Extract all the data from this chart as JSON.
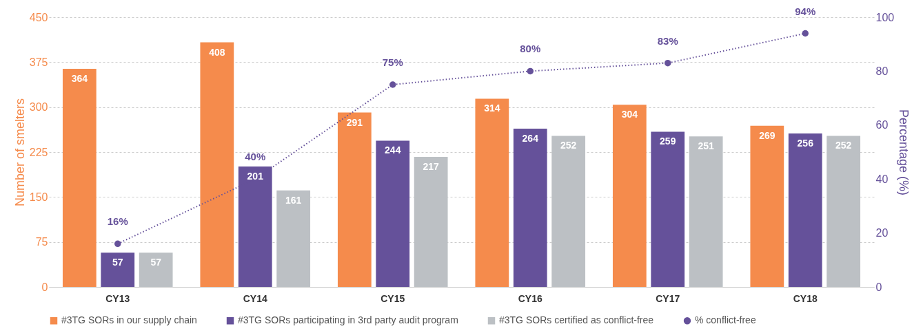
{
  "chart_data": {
    "type": "bar",
    "categories": [
      "CY13",
      "CY14",
      "CY15",
      "CY16",
      "CY17",
      "CY18"
    ],
    "ylabel": "Number of smelters",
    "y2label": "Percentage (%)",
    "ylim": [
      0,
      450
    ],
    "yticks": [
      0,
      75,
      150,
      225,
      300,
      375,
      450
    ],
    "y2lim": [
      0,
      100
    ],
    "y2ticks": [
      0,
      20,
      40,
      60,
      80,
      100
    ],
    "grid": "y",
    "legend": "bottom",
    "data_labels": true,
    "series": [
      {
        "name": "#3TG SORs in our supply chain",
        "color": "#f58b4c",
        "values": [
          364,
          408,
          291,
          314,
          304,
          269
        ]
      },
      {
        "name": "#3TG SORs participating in 3rd party audit program",
        "color": "#65519a",
        "values": [
          57,
          201,
          244,
          264,
          259,
          256
        ]
      },
      {
        "name": "#3TG SORs certified as conflict-free",
        "color": "#bcc0c4",
        "values": [
          57,
          161,
          217,
          252,
          251,
          252
        ]
      },
      {
        "name": "% conflict-free",
        "color": "#65519a",
        "type": "line",
        "axis": "y2",
        "marker": "circle",
        "line_style": "dotted",
        "values": [
          16,
          40,
          75,
          80,
          83,
          94
        ],
        "value_labels": [
          "16%",
          "40%",
          "75%",
          "80%",
          "83%",
          "94%"
        ]
      }
    ]
  }
}
